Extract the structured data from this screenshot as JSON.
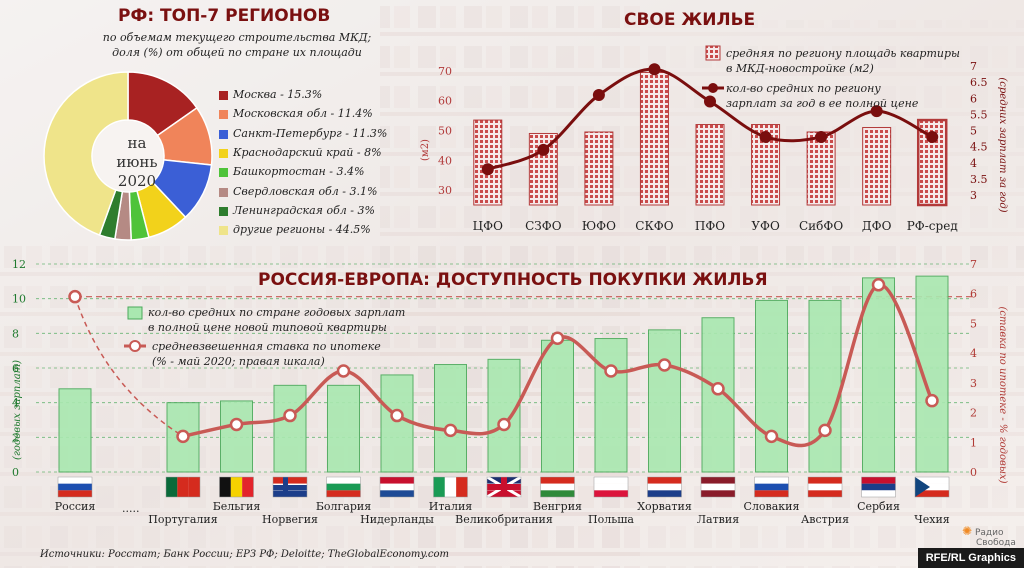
{
  "regions": {
    "title": "РФ: ТОП-7 РЕГИОНОВ",
    "subtitle_1": "по объемам текущего строительства МКД;",
    "subtitle_2": "доля (%) от общей по стране их площади",
    "center_1": "на",
    "center_2": "июнь",
    "center_3": "2020",
    "chart_data": {
      "type": "pie",
      "labels": [
        "Москва - 15.3%",
        "Московская обл - 11.4%",
        "Санкт-Петербург - 11.3%",
        "Краснодарский край - 8%",
        "Башкортостан - 3.4%",
        "Свердловская обл - 3.1%",
        "Ленинградская обл - 3%",
        "другие регионы - 44.5%"
      ],
      "values": [
        15.3,
        11.4,
        11.3,
        8,
        3.4,
        3.1,
        3,
        44.5
      ],
      "colors": [
        "#a82222",
        "#f0845a",
        "#3b5fd6",
        "#f2d21b",
        "#4fc33a",
        "#b58a84",
        "#2e7d2e",
        "#efe48a"
      ]
    }
  },
  "housing": {
    "title": "СВОЕ ЖИЛЬЕ",
    "legend_bar_1": "средняя по региону площадь квартиры",
    "legend_bar_2": "в МКД-новостройке (м2)",
    "legend_line_1": "кол-во средних по региону",
    "legend_line_2": "зарплат за год в ее полной цене",
    "left_unit": "(м2)",
    "right_axis_label": "(средних зарплат за год)",
    "chart_data": {
      "type": "bar",
      "categories": [
        "ЦФО",
        "СЗФО",
        "ЮФО",
        "СКФО",
        "ПФО",
        "УФО",
        "СибФО",
        "ДФО",
        "РФ-сред"
      ],
      "series": [
        {
          "name": "средняя по региону площадь квартиры в МКД-новостройке (м2)",
          "values": [
            53.5,
            49,
            49.5,
            69.5,
            52,
            52,
            49.5,
            51,
            53.5
          ],
          "axis": "left"
        },
        {
          "name": "кол-во средних по региону зарплат за год в ее полной цене",
          "values": [
            3.8,
            4.4,
            6.1,
            6.9,
            5.9,
            4.8,
            4.8,
            5.6,
            4.8
          ],
          "axis": "right"
        }
      ],
      "left_ylim": [
        25,
        75
      ],
      "left_ticks": [
        "70",
        "60",
        "50",
        "40",
        "30"
      ],
      "right_ylim": [
        3,
        7
      ],
      "right_ticks": [
        "7",
        "6.5",
        "6",
        "5.5",
        "5",
        "4.5",
        "4",
        "3.5",
        "3"
      ],
      "bar_color": "#b23a3a",
      "line_color": "#7a0e0e"
    }
  },
  "europe": {
    "title": "РОССИЯ-ЕВРОПА: ДОСТУПНОСТЬ ПОКУПКИ ЖИЛЬЯ",
    "legend_bar_1": "кол-во средних по стране годовых зарплат",
    "legend_bar_2": "в полной цене новой типовой квартиры",
    "legend_line_1": "средневзвешенная ставка по ипотеке",
    "legend_line_2": "(% - май 2020;  правая шкала)",
    "left_axis_label": "(годовых зарплат)",
    "right_axis_label": "(ставка по ипотеке - % годовых)",
    "ellipsis": ".....",
    "chart_data": {
      "type": "bar",
      "categories": [
        "Россия",
        "Португалия",
        "Бельгия",
        "Норвегия",
        "Болгария",
        "Нидерланды",
        "Италия",
        "Великобритания",
        "Венгрия",
        "Польша",
        "Хорватия",
        "Латвия",
        "Словакия",
        "Австрия",
        "Сербия",
        "Чехия"
      ],
      "series": [
        {
          "name": "кол-во средних по стране годовых зарплат в полной цене новой типовой квартиры",
          "values": [
            4.8,
            4.0,
            4.1,
            5.0,
            5.0,
            5.6,
            6.2,
            6.5,
            7.6,
            7.7,
            8.2,
            8.9,
            9.9,
            9.9,
            11.2,
            11.3
          ],
          "axis": "left"
        },
        {
          "name": "средневзвешенная ставка по ипотеке (% - май 2020; правая шкала)",
          "values": [
            5.9,
            1.2,
            1.6,
            1.9,
            3.4,
            1.9,
            1.4,
            1.6,
            4.5,
            3.4,
            3.6,
            2.8,
            1.2,
            1.4,
            6.3,
            2.4
          ],
          "axis": "right"
        }
      ],
      "left_ylim": [
        0,
        12
      ],
      "left_ticks": [
        "0",
        "2",
        "4",
        "6",
        "8",
        "10",
        "12"
      ],
      "right_ylim": [
        0,
        7
      ],
      "right_ticks": [
        "0",
        "1",
        "2",
        "3",
        "4",
        "5",
        "6",
        "7"
      ],
      "bar_color": "#7fd98a",
      "line_color": "#c85a55"
    }
  },
  "footer": {
    "sources": "Источники: Росстат; Банк России; ЕРЗ РФ; Deloitte; TheGlobalEconomy.com",
    "logo_1": "Радио",
    "logo_2": "Свобода",
    "credit": "RFE/RL Graphics"
  }
}
